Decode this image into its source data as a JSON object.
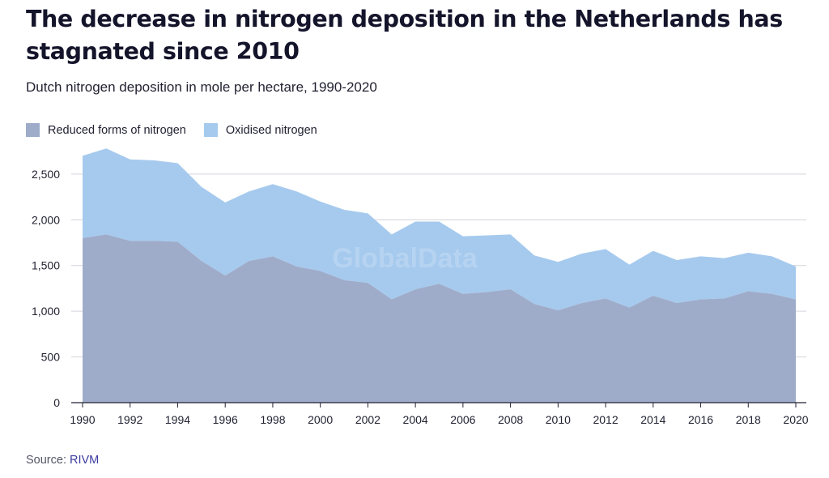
{
  "header": {
    "title": "The decrease in nitrogen deposition in the Netherlands has stagnated since 2010",
    "subtitle": "Dutch nitrogen deposition in mole per hectare, 1990-2020"
  },
  "footer": {
    "source_prefix": "Source: ",
    "source_name": "RIVM"
  },
  "watermark": "GlobalData",
  "chart_data": {
    "type": "area",
    "stacked": true,
    "x": [
      1990,
      1991,
      1992,
      1993,
      1994,
      1995,
      1996,
      1997,
      1998,
      1999,
      2000,
      2001,
      2002,
      2003,
      2004,
      2005,
      2006,
      2007,
      2008,
      2009,
      2010,
      2011,
      2012,
      2013,
      2014,
      2015,
      2016,
      2017,
      2018,
      2019,
      2020
    ],
    "series": [
      {
        "name": "Reduced forms of nitrogen",
        "color": "#9eacca",
        "values": [
          1800,
          1840,
          1770,
          1770,
          1760,
          1550,
          1390,
          1550,
          1600,
          1490,
          1440,
          1340,
          1310,
          1130,
          1240,
          1300,
          1190,
          1210,
          1240,
          1080,
          1010,
          1090,
          1140,
          1040,
          1170,
          1090,
          1130,
          1140,
          1220,
          1190,
          1130
        ]
      },
      {
        "name": "Oxidised nitrogen",
        "color": "#a6caee",
        "values": [
          900,
          940,
          890,
          880,
          860,
          810,
          800,
          760,
          790,
          820,
          760,
          770,
          760,
          710,
          740,
          680,
          630,
          620,
          600,
          530,
          530,
          540,
          540,
          470,
          490,
          470,
          470,
          440,
          420,
          410,
          360
        ]
      }
    ],
    "ylim": [
      0,
      2800
    ],
    "yticks": [
      0,
      500,
      1000,
      1500,
      2000,
      2500
    ],
    "ytick_labels": [
      "0",
      "500",
      "1,000",
      "1,500",
      "2,000",
      "2,500"
    ],
    "xticks": [
      1990,
      1992,
      1994,
      1996,
      1998,
      2000,
      2002,
      2004,
      2006,
      2008,
      2010,
      2012,
      2014,
      2016,
      2018,
      2020
    ],
    "xlabel": "",
    "ylabel": "",
    "grid": true,
    "legend_position": "top-left"
  }
}
